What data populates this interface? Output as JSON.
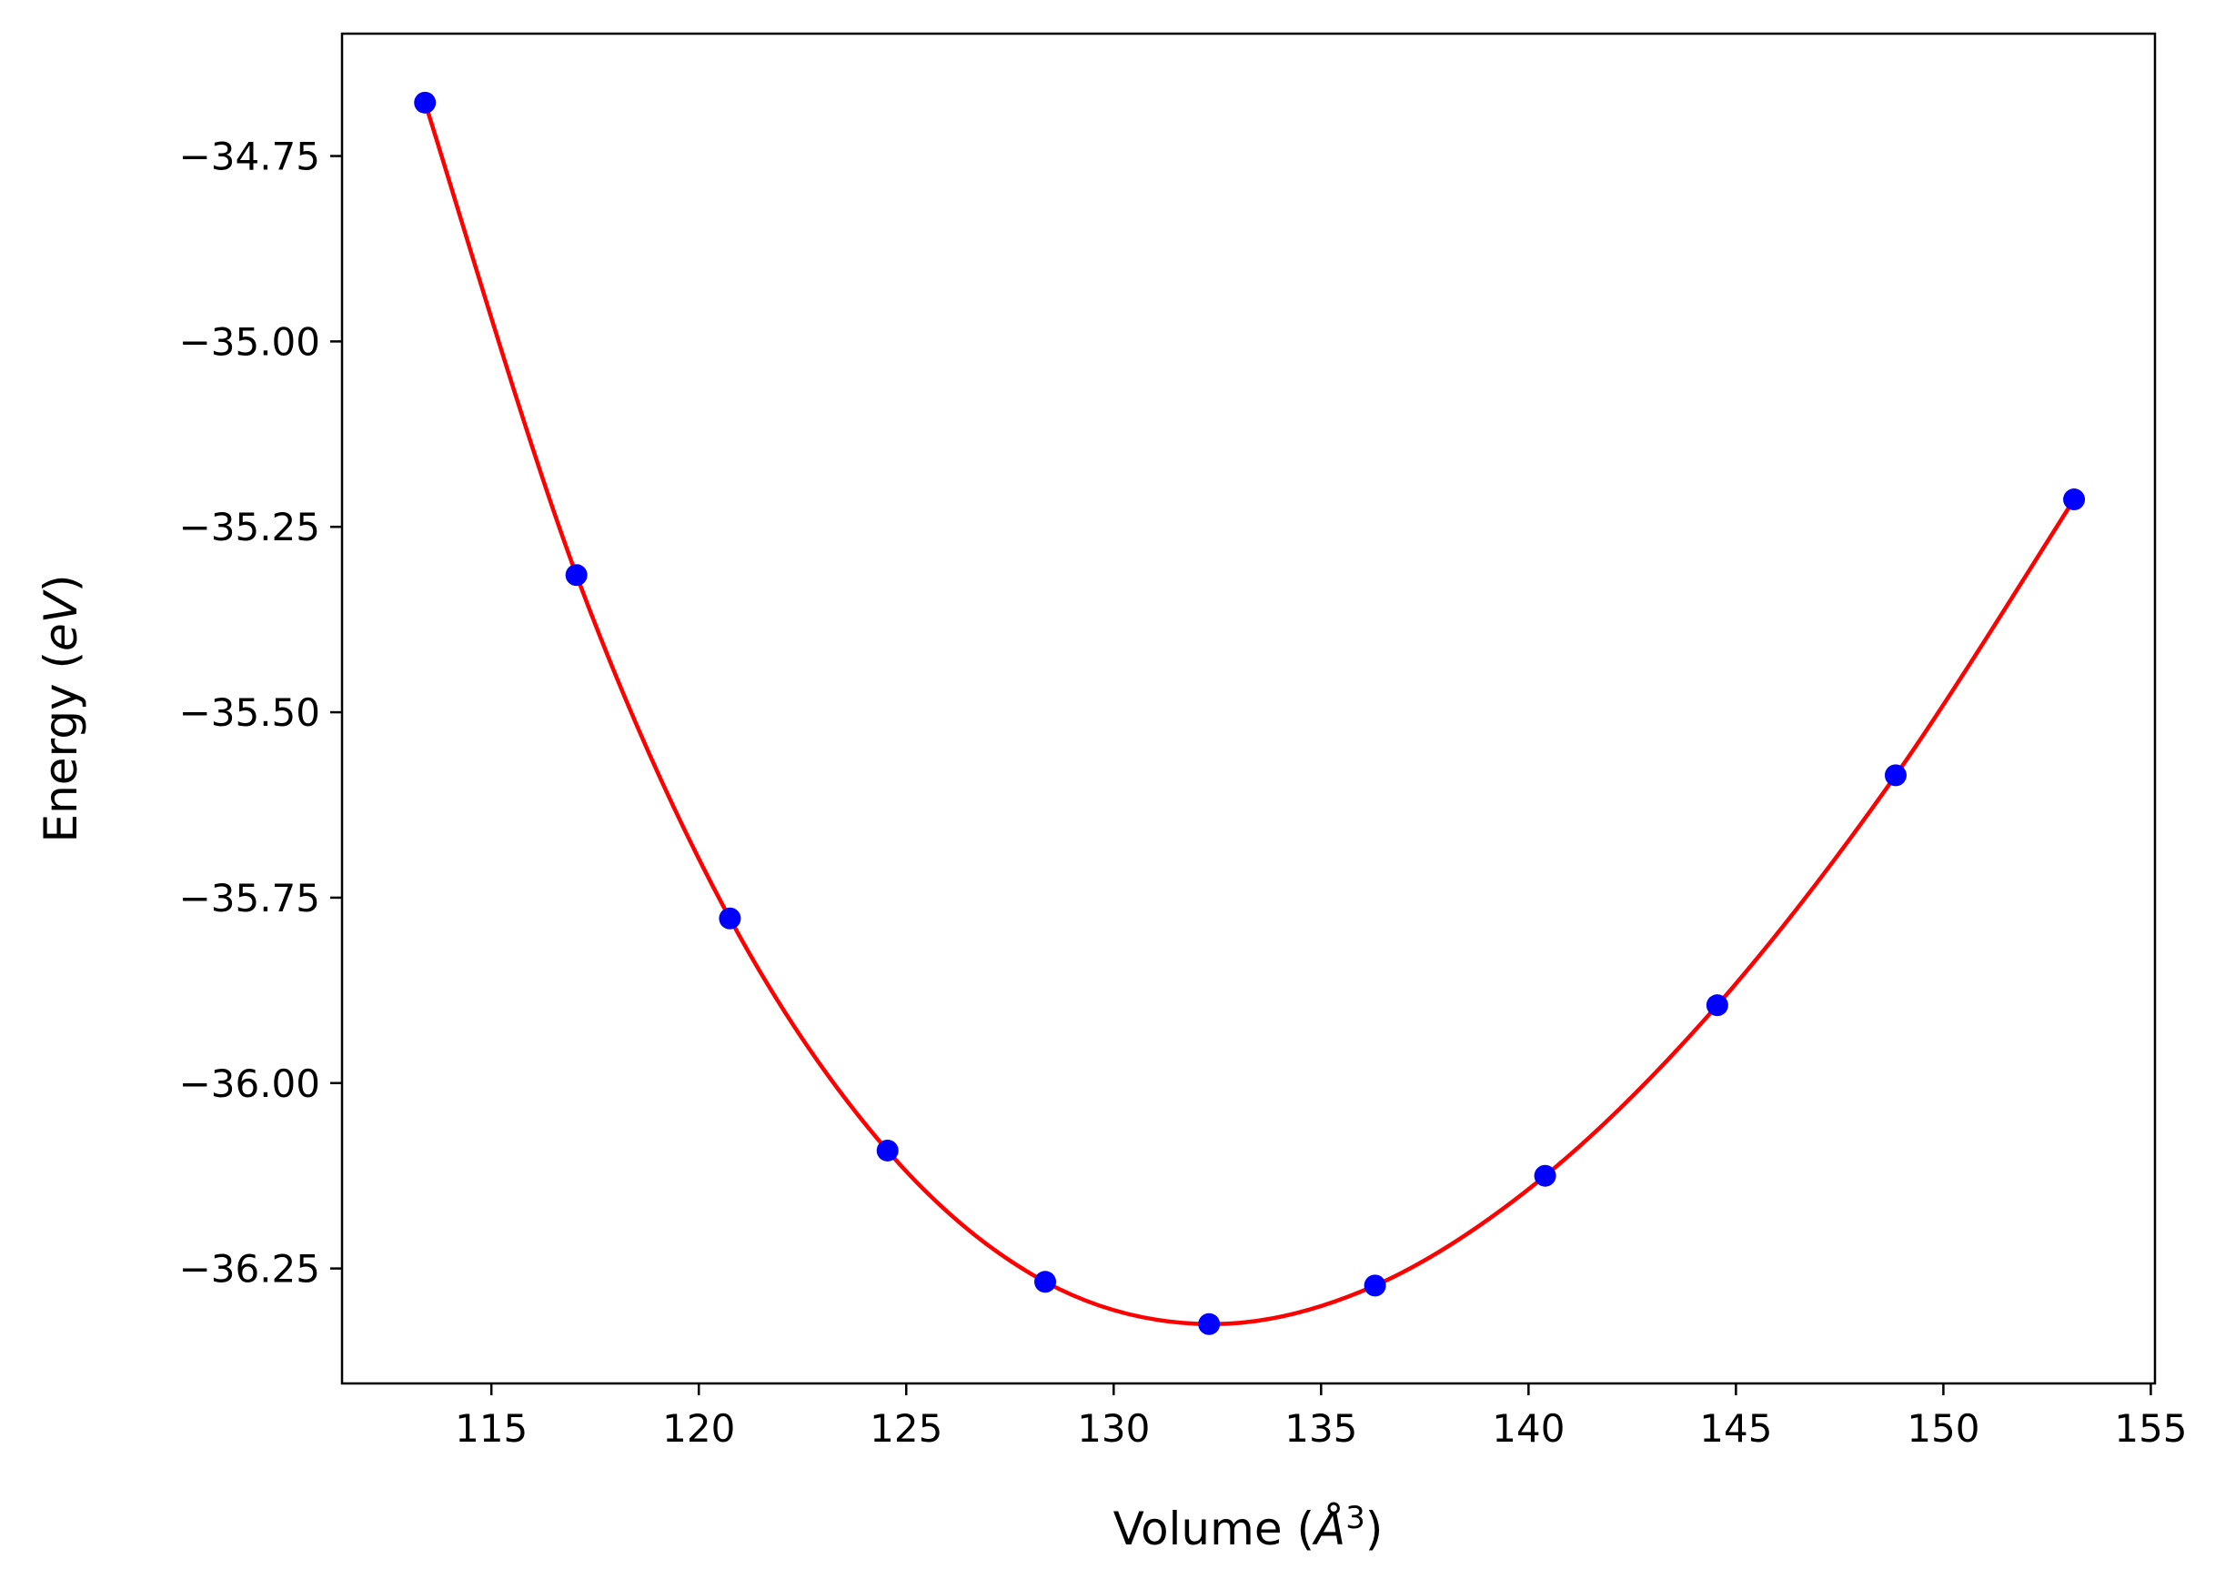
{
  "chart_data": {
    "type": "scatter",
    "xlabel": "Volume (Å³)",
    "ylabel": "Energy (eV)",
    "xlabel_parts": {
      "pre": "Volume (",
      "sym": "Å",
      "sup": "3",
      "post": ")"
    },
    "ylabel_parts": {
      "pre": "Energy (",
      "sym": "eV",
      "post": ")"
    },
    "xlim": [
      111.4,
      155.1
    ],
    "ylim": [
      -36.405,
      -34.585
    ],
    "xticks": [
      115,
      120,
      125,
      130,
      135,
      140,
      145,
      150,
      155
    ],
    "yticks": [
      -34.75,
      -35.0,
      -35.25,
      -35.5,
      -35.75,
      -36.0,
      -36.25
    ],
    "xtick_labels": [
      "115",
      "120",
      "125",
      "130",
      "135",
      "140",
      "145",
      "150",
      "155"
    ],
    "ytick_labels": [
      "−34.75",
      "−35.00",
      "−35.25",
      "−35.50",
      "−35.75",
      "−36.00",
      "−36.25"
    ],
    "grid": false,
    "series": [
      {
        "kind": "points",
        "color": "#0000ff",
        "x": [
          113.4,
          117.05,
          120.75,
          124.55,
          128.35,
          132.3,
          136.3,
          140.4,
          144.55,
          148.85,
          153.15
        ],
        "y": [
          -34.678,
          -35.315,
          -35.778,
          -36.091,
          -36.268,
          -36.325,
          -36.273,
          -36.125,
          -35.895,
          -35.585,
          -35.213
        ]
      },
      {
        "kind": "fit-curve",
        "color": "#ff0000",
        "x": [
          113.4,
          117.05,
          120.75,
          124.55,
          128.35,
          132.3,
          136.3,
          140.4,
          144.55,
          148.85,
          153.15
        ],
        "y": [
          -34.678,
          -35.315,
          -35.778,
          -36.091,
          -36.268,
          -36.325,
          -36.273,
          -36.125,
          -35.895,
          -35.585,
          -35.213
        ]
      }
    ]
  }
}
